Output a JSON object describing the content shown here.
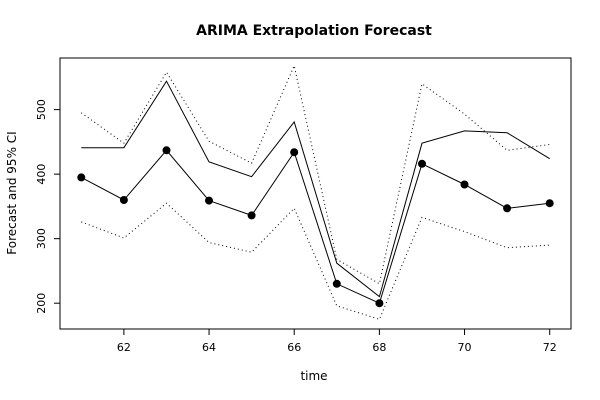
{
  "chart_data": {
    "type": "line",
    "title": "ARIMA Extrapolation Forecast",
    "xlabel": "time",
    "ylabel": "Forecast and 95% CI",
    "xlim": [
      60.5,
      72.5
    ],
    "ylim": [
      160,
      580
    ],
    "x_ticks": [
      62,
      64,
      66,
      68,
      70,
      72
    ],
    "y_ticks": [
      200,
      300,
      400,
      500
    ],
    "x": [
      61,
      62,
      63,
      64,
      65,
      66,
      67,
      68,
      69,
      70,
      71,
      72
    ],
    "series": [
      {
        "role": "forecast",
        "style": "line+points",
        "values": [
          395,
          360,
          437,
          359,
          336,
          434,
          230,
          200,
          416,
          384,
          347,
          355
        ]
      },
      {
        "role": "actual",
        "style": "solid",
        "values": [
          441,
          441,
          544,
          419,
          396,
          481,
          262,
          210,
          448,
          467,
          464,
          424
        ]
      },
      {
        "role": "upper-95",
        "style": "dotted",
        "values": [
          495,
          448,
          558,
          451,
          417,
          568,
          268,
          230,
          540,
          493,
          437,
          446
        ]
      },
      {
        "role": "lower-95",
        "style": "dotted",
        "values": [
          326,
          301,
          355,
          294,
          279,
          347,
          196,
          175,
          333,
          311,
          286,
          290
        ]
      }
    ]
  }
}
